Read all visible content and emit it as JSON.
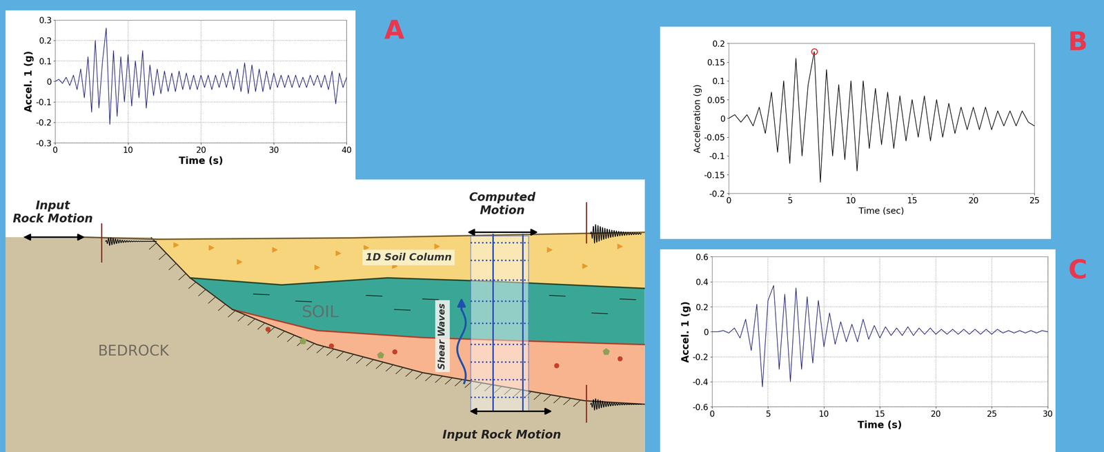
{
  "panel_labels": [
    "A",
    "B",
    "C"
  ],
  "chart_data": [
    {
      "type": "line",
      "x_label": "Time (s)",
      "y_label": "Accel. 1 (g)",
      "xlim": [
        0,
        40
      ],
      "xticks": [
        0,
        10,
        20,
        30,
        40
      ],
      "ylim": [
        -0.3,
        0.3
      ],
      "yticks": [
        -0.3,
        -0.2,
        -0.1,
        0,
        0.1,
        0.2,
        0.3
      ],
      "grid": true,
      "color": "#23237a",
      "x": [
        0,
        0.5,
        1,
        1.5,
        2,
        2.5,
        3,
        3.5,
        4,
        4.5,
        5,
        5.5,
        6,
        6.5,
        7,
        7.5,
        8,
        8.5,
        9,
        9.5,
        10,
        10.5,
        11,
        11.5,
        12,
        12.5,
        13,
        13.5,
        14,
        14.5,
        15,
        15.5,
        16,
        16.5,
        17,
        17.5,
        18,
        18.5,
        19,
        19.5,
        20,
        20.5,
        21,
        21.5,
        22,
        22.5,
        23,
        23.5,
        24,
        24.5,
        25,
        25.5,
        26,
        26.5,
        27,
        27.5,
        28,
        28.5,
        29,
        29.5,
        30,
        30.5,
        31,
        31.5,
        32,
        32.5,
        33,
        33.5,
        34,
        34.5,
        35,
        35.5,
        36,
        36.5,
        37,
        37.5,
        38,
        38.5,
        39,
        39.5,
        40
      ],
      "values": [
        0.0,
        0.01,
        -0.01,
        0.02,
        -0.02,
        0.03,
        -0.04,
        0.06,
        -0.08,
        0.12,
        -0.15,
        0.2,
        -0.13,
        0.1,
        0.26,
        -0.21,
        0.15,
        -0.17,
        0.12,
        -0.1,
        0.13,
        -0.12,
        0.1,
        -0.08,
        0.15,
        -0.13,
        0.08,
        -0.07,
        0.06,
        -0.06,
        0.05,
        -0.05,
        0.04,
        -0.05,
        0.05,
        -0.04,
        0.04,
        -0.04,
        0.03,
        -0.04,
        0.03,
        -0.03,
        0.03,
        -0.04,
        0.03,
        -0.03,
        0.04,
        -0.03,
        0.05,
        -0.04,
        0.06,
        -0.05,
        0.09,
        -0.06,
        0.08,
        -0.05,
        0.06,
        -0.05,
        0.05,
        -0.04,
        0.04,
        -0.03,
        0.03,
        -0.03,
        0.03,
        -0.03,
        0.03,
        -0.03,
        0.02,
        -0.03,
        0.03,
        -0.02,
        0.03,
        -0.03,
        0.03,
        -0.04,
        0.05,
        -0.11,
        0.04,
        -0.03,
        0.02
      ]
    },
    {
      "type": "line",
      "x_label": "Time (sec)",
      "y_label": "Acceleration (g)",
      "xlim": [
        0,
        25
      ],
      "xticks": [
        0,
        5,
        10,
        15,
        20,
        25
      ],
      "ylim": [
        -0.2,
        0.2
      ],
      "yticks": [
        -0.2,
        -0.15,
        -0.1,
        -0.05,
        0,
        0.05,
        0.1,
        0.15,
        0.2
      ],
      "grid": false,
      "series": [
        {
          "type": "line",
          "color": "#000000",
          "x": [
            0,
            0.5,
            1,
            1.5,
            2,
            2.5,
            3,
            3.5,
            4,
            4.5,
            5,
            5.5,
            6,
            6.5,
            7,
            7.5,
            8,
            8.5,
            9,
            9.5,
            10,
            10.5,
            11,
            11.5,
            12,
            12.5,
            13,
            13.5,
            14,
            14.5,
            15,
            15.5,
            16,
            16.5,
            17,
            17.5,
            18,
            18.5,
            19,
            19.5,
            20,
            20.5,
            21,
            21.5,
            22,
            22.5,
            23,
            23.5,
            24,
            24.5,
            25
          ],
          "values": [
            0.0,
            0.01,
            -0.01,
            0.01,
            -0.02,
            0.03,
            -0.04,
            0.07,
            -0.09,
            0.1,
            -0.12,
            0.16,
            -0.1,
            0.09,
            0.178,
            -0.17,
            0.13,
            -0.1,
            0.09,
            -0.11,
            0.1,
            -0.14,
            0.1,
            -0.08,
            0.08,
            -0.07,
            0.07,
            -0.08,
            0.06,
            -0.06,
            0.05,
            -0.05,
            0.06,
            -0.06,
            0.05,
            -0.05,
            0.04,
            -0.04,
            0.03,
            -0.03,
            0.03,
            -0.03,
            0.03,
            -0.03,
            0.02,
            -0.02,
            0.02,
            -0.02,
            0.02,
            -0.01,
            -0.02
          ]
        },
        {
          "type": "scatter",
          "color": "#e03030",
          "marker": "circle",
          "x": [
            7
          ],
          "values": [
            0.178
          ]
        }
      ]
    },
    {
      "type": "line",
      "x_label": "Time (s)",
      "y_label": "Accel. 1 (g)",
      "xlim": [
        0,
        30
      ],
      "xticks": [
        0,
        5,
        10,
        15,
        20,
        25,
        30
      ],
      "ylim": [
        -0.6,
        0.6
      ],
      "yticks": [
        -0.6,
        -0.4,
        -0.2,
        0,
        0.2,
        0.4,
        0.6
      ],
      "grid": true,
      "color": "#23237a",
      "x": [
        0,
        0.5,
        1,
        1.5,
        2,
        2.5,
        3,
        3.5,
        4,
        4.5,
        5,
        5.5,
        6,
        6.5,
        7,
        7.5,
        8,
        8.5,
        9,
        9.5,
        10,
        10.5,
        11,
        11.5,
        12,
        12.5,
        13,
        13.5,
        14,
        14.5,
        15,
        15.5,
        16,
        16.5,
        17,
        17.5,
        18,
        18.5,
        19,
        19.5,
        20,
        20.5,
        21,
        21.5,
        22,
        22.5,
        23,
        23.5,
        24,
        24.5,
        25,
        25.5,
        26,
        26.5,
        27,
        27.5,
        28,
        28.5,
        29,
        29.5,
        30
      ],
      "values": [
        0.0,
        0.0,
        0.01,
        -0.01,
        0.03,
        -0.05,
        0.1,
        -0.15,
        0.22,
        -0.44,
        0.25,
        0.37,
        -0.3,
        0.3,
        -0.4,
        0.35,
        -0.3,
        0.28,
        -0.25,
        0.25,
        -0.12,
        0.15,
        -0.1,
        0.08,
        -0.08,
        0.06,
        -0.08,
        0.1,
        -0.06,
        0.05,
        -0.05,
        0.04,
        -0.03,
        0.03,
        -0.03,
        0.04,
        -0.03,
        0.03,
        -0.02,
        0.03,
        -0.02,
        0.02,
        -0.02,
        0.02,
        -0.02,
        0.02,
        -0.02,
        0.02,
        -0.02,
        0.02,
        -0.02,
        0.02,
        -0.01,
        0.01,
        -0.01,
        0.01,
        -0.01,
        0.01,
        -0.01,
        0.01,
        0.0
      ]
    }
  ],
  "diagram": {
    "labels": {
      "input_rock_motion_top": "Input\nRock Motion",
      "computed_motion": "Computed\nMotion",
      "soil_column": "1D Soil Column",
      "soil": "SOIL",
      "bedrock": "BEDROCK",
      "shear_waves": "Shear Waves",
      "input_rock_motion_bottom": "Input Rock Motion"
    }
  }
}
